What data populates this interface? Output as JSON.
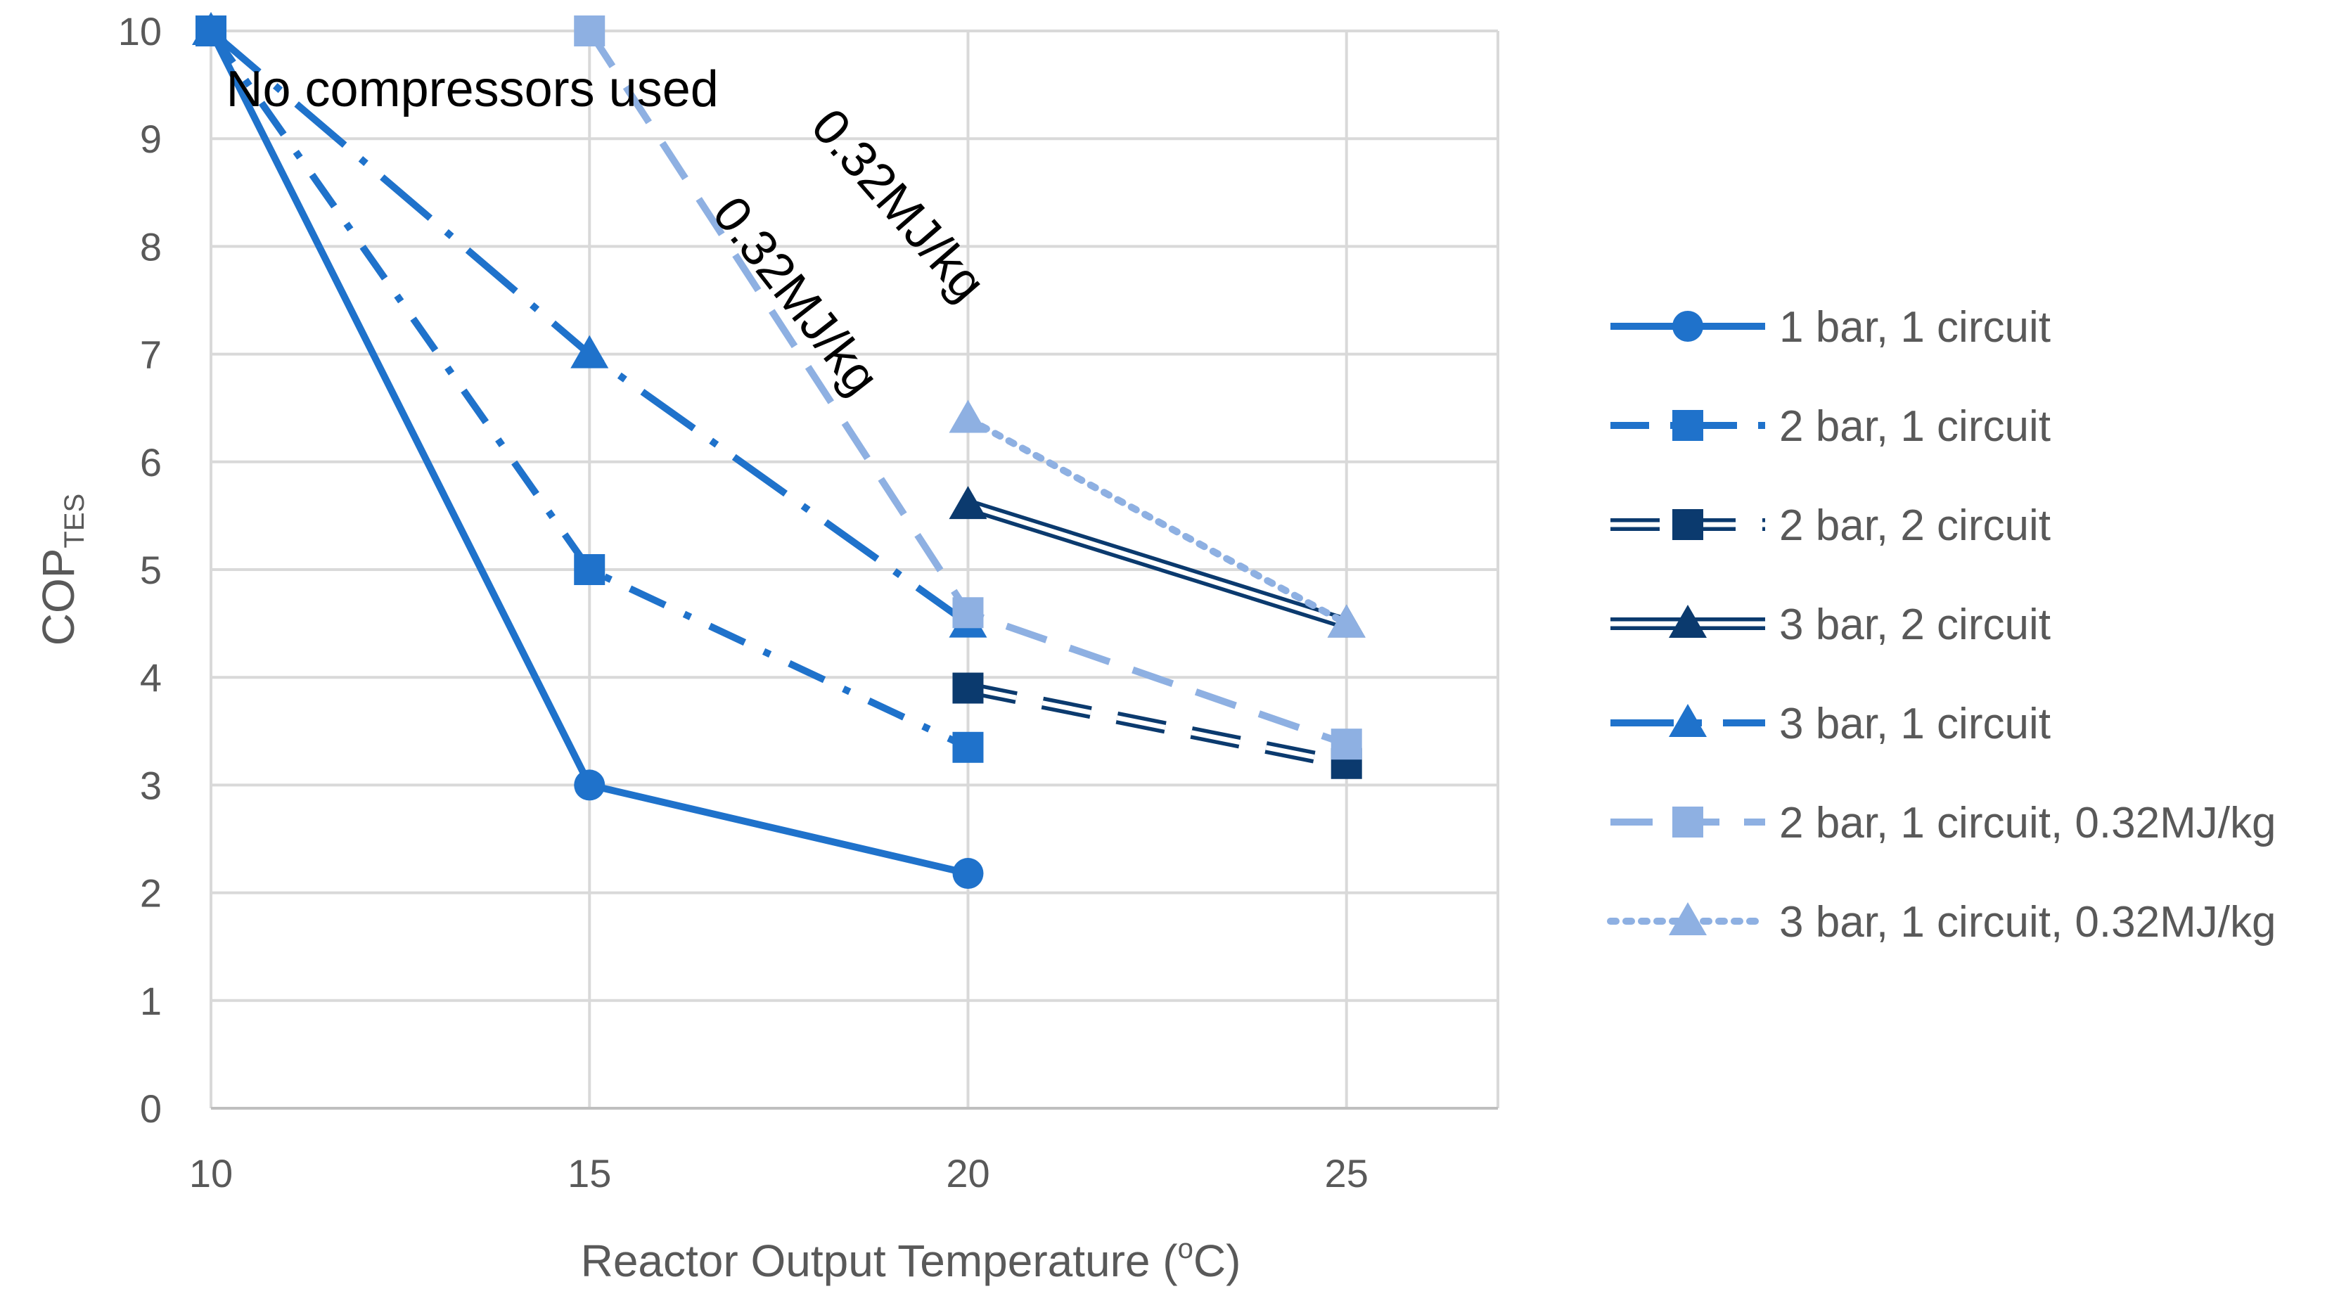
{
  "chart_data": {
    "type": "line",
    "title": "",
    "xlabel": "Reactor Output Temperature (°C)",
    "xlabel_parts": {
      "before": "Reactor Output Temperature (",
      "sup": "o",
      "after": "C)"
    },
    "ylabel": "COP_TES",
    "ylabel_parts": {
      "main": "COP",
      "sub": "TES"
    },
    "xlim": [
      10,
      27
    ],
    "ylim": [
      0,
      10
    ],
    "x_ticks": [
      10,
      15,
      20,
      25
    ],
    "y_ticks": [
      0,
      1,
      2,
      3,
      4,
      5,
      6,
      7,
      8,
      9,
      10
    ],
    "grid": true,
    "legend_position": "right",
    "series": [
      {
        "name": "1 bar, 1 circuit",
        "x": [
          10,
          15,
          20
        ],
        "y": [
          10,
          3,
          2.18
        ],
        "color": "#1f72cb",
        "dash": "solid",
        "marker": "circle"
      },
      {
        "name": "2 bar, 1 circuit",
        "x": [
          10,
          15,
          20
        ],
        "y": [
          10,
          5,
          3.35
        ],
        "color": "#1f72cb",
        "dash": "dashdot",
        "marker": "square"
      },
      {
        "name": "2 bar, 2 circuit",
        "x": [
          20,
          25
        ],
        "y": [
          3.9,
          3.2
        ],
        "color": "#0b3a6e",
        "dash": "double-dash",
        "marker": "square"
      },
      {
        "name": "3 bar, 2 circuit",
        "x": [
          20,
          25
        ],
        "y": [
          5.6,
          4.5
        ],
        "color": "#0b3a6e",
        "dash": "double",
        "marker": "triangle"
      },
      {
        "name": "3 bar, 1 circuit",
        "x": [
          10,
          15,
          20
        ],
        "y": [
          10,
          7,
          4.5
        ],
        "color": "#1f72cb",
        "dash": "longdashdot",
        "marker": "triangle"
      },
      {
        "name": "2 bar, 1 circuit, 0.32MJ/kg",
        "x": [
          15,
          20,
          25
        ],
        "y": [
          10,
          4.6,
          3.38
        ],
        "color": "#8eb0e2",
        "dash": "dash",
        "marker": "square"
      },
      {
        "name": "3 bar, 1 circuit, 0.32MJ/kg",
        "x": [
          20,
          25
        ],
        "y": [
          6.4,
          4.5
        ],
        "color": "#8eb0e2",
        "dash": "dot",
        "marker": "triangle"
      }
    ],
    "annotations": [
      {
        "text": "No compressors used",
        "x": 10.2,
        "y": 9.3,
        "rotate": 0
      },
      {
        "text": "0.32MJ/kg",
        "x": 16.6,
        "y": 8.3,
        "rotate": 52
      },
      {
        "text": "0.32MJ/kg",
        "x": 17.9,
        "y": 9.1,
        "rotate": 49
      }
    ]
  }
}
